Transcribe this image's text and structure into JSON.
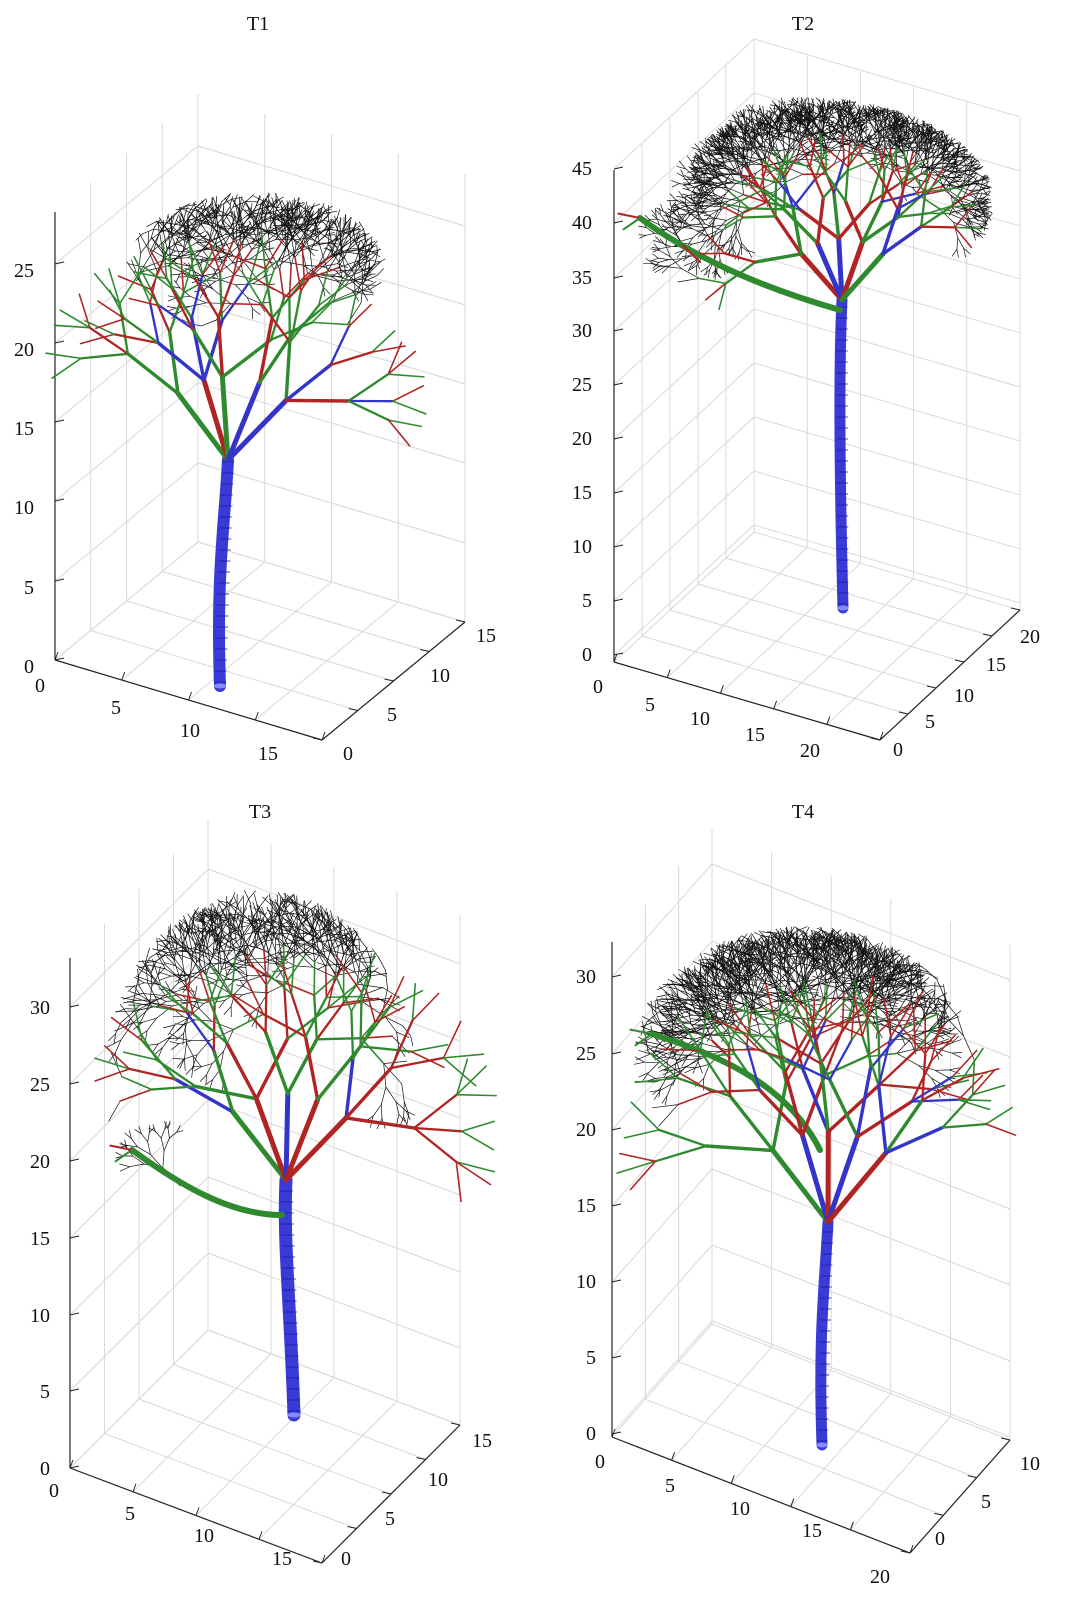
{
  "panels": [
    {
      "title": "T1",
      "z_ticks": [
        "0",
        "5",
        "10",
        "15",
        "20",
        "25"
      ],
      "x_ticks": [
        "0",
        "5",
        "10",
        "15"
      ],
      "y_ticks": [
        "0",
        "5",
        "10",
        "15"
      ]
    },
    {
      "title": "T2",
      "z_ticks": [
        "0",
        "5",
        "10",
        "15",
        "20",
        "25",
        "30",
        "35",
        "40",
        "45"
      ],
      "x_ticks": [
        "0",
        "5",
        "10",
        "15",
        "20"
      ],
      "y_ticks": [
        "0",
        "5",
        "10",
        "15",
        "20"
      ]
    },
    {
      "title": "T3",
      "z_ticks": [
        "0",
        "5",
        "10",
        "15",
        "20",
        "25",
        "30"
      ],
      "x_ticks": [
        "0",
        "5",
        "10",
        "15"
      ],
      "y_ticks": [
        "0",
        "5",
        "10",
        "15"
      ]
    },
    {
      "title": "T4",
      "z_ticks": [
        "0",
        "5",
        "10",
        "15",
        "20",
        "25",
        "30"
      ],
      "x_ticks": [
        "0",
        "5",
        "10",
        "15",
        "20"
      ],
      "y_ticks": [
        "0",
        "5",
        "10"
      ]
    }
  ],
  "colors": {
    "trunk": "#3a3ad6",
    "branch_primary": "#2f8a2f",
    "branch_secondary": "#b02424",
    "branch_leader": "#3434c8",
    "twigs": "#111111",
    "grid": "#d8d8d8"
  }
}
